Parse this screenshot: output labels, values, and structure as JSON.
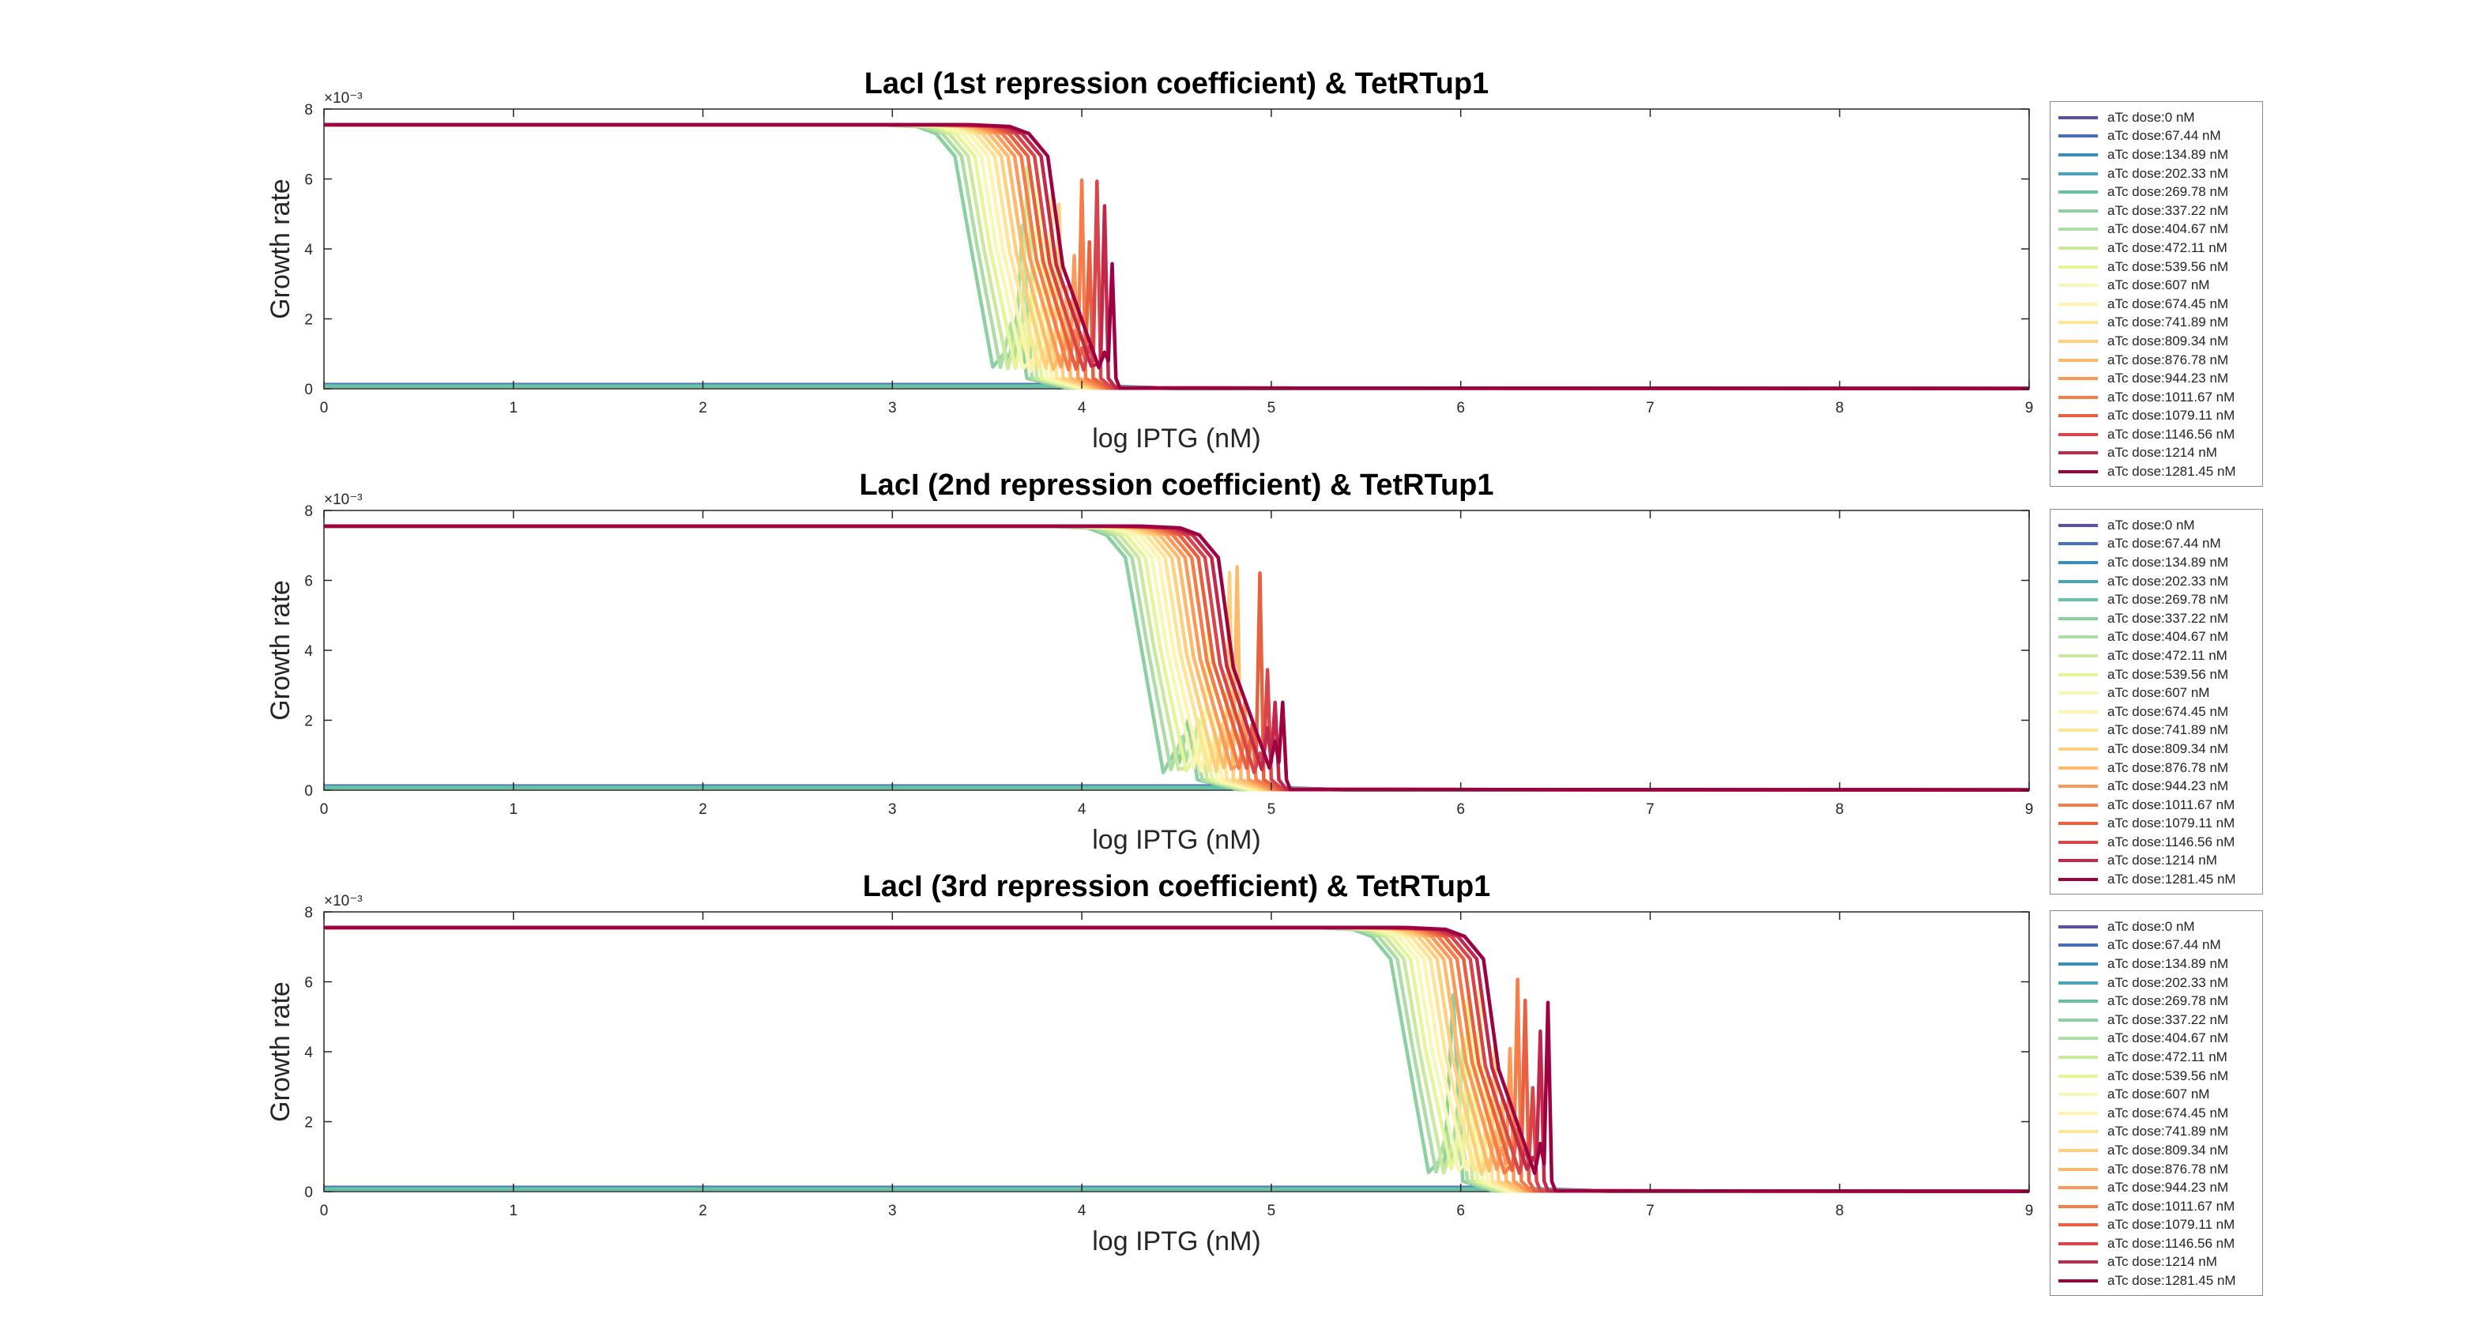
{
  "chart_data": [
    {
      "type": "line",
      "title": "LacI (1st repression coefficient) & TetRTup1",
      "xlabel": "log IPTG (nM)",
      "ylabel": "Growth rate",
      "y_exponent": "×10⁻³",
      "xlim": [
        0,
        9
      ],
      "ylim": [
        0,
        8
      ],
      "xticks": [
        "0",
        "1",
        "2",
        "3",
        "4",
        "5",
        "6",
        "7",
        "8",
        "9"
      ],
      "yticks": [
        "0",
        "2",
        "4",
        "6",
        "8"
      ],
      "plateau": 7.55,
      "transition_start": 3.3,
      "transition_spacing": 0.035,
      "spike_region": [
        3.6,
        4.2
      ],
      "drop_end": 4.2,
      "legend_position": "right"
    },
    {
      "type": "line",
      "title": "LacI (2nd repression coefficient) & TetRTup1",
      "xlabel": "log IPTG (nM)",
      "ylabel": "Growth rate",
      "y_exponent": "×10⁻³",
      "xlim": [
        0,
        9
      ],
      "ylim": [
        0,
        8
      ],
      "xticks": [
        "0",
        "1",
        "2",
        "3",
        "4",
        "5",
        "6",
        "7",
        "8",
        "9"
      ],
      "yticks": [
        "0",
        "2",
        "4",
        "6",
        "8"
      ],
      "plateau": 7.55,
      "transition_start": 4.2,
      "transition_spacing": 0.035,
      "spike_region": [
        4.5,
        5.1
      ],
      "drop_end": 5.1,
      "legend_position": "right"
    },
    {
      "type": "line",
      "title": "LacI (3rd repression coefficient) & TetRTup1",
      "xlabel": "log IPTG (nM)",
      "ylabel": "Growth rate",
      "y_exponent": "×10⁻³",
      "xlim": [
        0,
        9
      ],
      "ylim": [
        0,
        8
      ],
      "xticks": [
        "0",
        "1",
        "2",
        "3",
        "4",
        "5",
        "6",
        "7",
        "8",
        "9"
      ],
      "yticks": [
        "0",
        "2",
        "4",
        "6",
        "8"
      ],
      "plateau": 7.55,
      "transition_start": 5.6,
      "transition_spacing": 0.035,
      "spike_region": [
        5.9,
        6.45
      ],
      "drop_end": 6.45,
      "legend_position": "right"
    }
  ],
  "series": [
    {
      "name": "aTc dose:0 nM",
      "color": "#5e4fa2"
    },
    {
      "name": "aTc dose:67.44 nM",
      "color": "#4a6fb0"
    },
    {
      "name": "aTc dose:134.89 nM",
      "color": "#3a8cbb"
    },
    {
      "name": "aTc dose:202.33 nM",
      "color": "#4aa6b4"
    },
    {
      "name": "aTc dose:269.78 nM",
      "color": "#66c2a5"
    },
    {
      "name": "aTc dose:337.22 nM",
      "color": "#8ccfa0"
    },
    {
      "name": "aTc dose:404.67 nM",
      "color": "#abdda4"
    },
    {
      "name": "aTc dose:472.11 nM",
      "color": "#cbe99d"
    },
    {
      "name": "aTc dose:539.56 nM",
      "color": "#e6f598"
    },
    {
      "name": "aTc dose:607 nM",
      "color": "#f4f9b5"
    },
    {
      "name": "aTc dose:674.45 nM",
      "color": "#fff3ae"
    },
    {
      "name": "aTc dose:741.89 nM",
      "color": "#fee596"
    },
    {
      "name": "aTc dose:809.34 nM",
      "color": "#fed07e"
    },
    {
      "name": "aTc dose:876.78 nM",
      "color": "#fdba6b"
    },
    {
      "name": "aTc dose:944.23 nM",
      "color": "#fa9a58"
    },
    {
      "name": "aTc dose:1011.67 nM",
      "color": "#f67c4a"
    },
    {
      "name": "aTc dose:1079.11 nM",
      "color": "#e8603f"
    },
    {
      "name": "aTc dose:1146.56 nM",
      "color": "#d8464b"
    },
    {
      "name": "aTc dose:1214 nM",
      "color": "#c1284a"
    },
    {
      "name": "aTc dose:1281.45 nM",
      "color": "#9e0142"
    }
  ]
}
